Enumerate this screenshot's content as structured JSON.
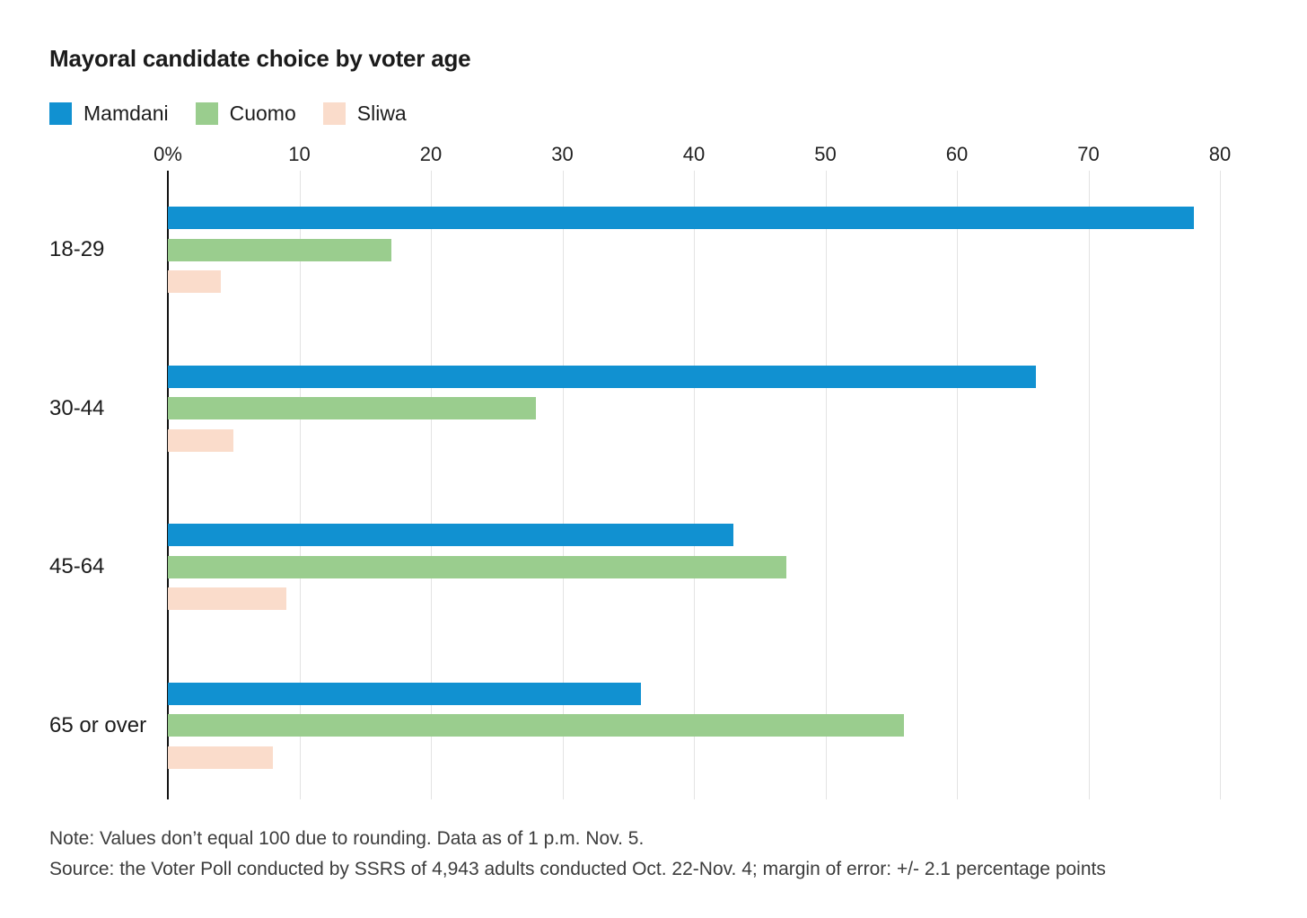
{
  "chart_data": {
    "type": "bar",
    "orientation": "horizontal",
    "title": "Mayoral candidate choice by voter age",
    "categories": [
      "18-29",
      "30-44",
      "45-64",
      "65 or over"
    ],
    "series": [
      {
        "name": "Mamdani",
        "color": "#1191d1",
        "values": [
          78,
          66,
          43,
          36
        ]
      },
      {
        "name": "Cuomo",
        "color": "#9acd8e",
        "values": [
          17,
          28,
          47,
          56
        ]
      },
      {
        "name": "Sliwa",
        "color": "#fadccb",
        "values": [
          4,
          5,
          9,
          8
        ]
      }
    ],
    "x_ticks": [
      "0%",
      "10",
      "20",
      "30",
      "40",
      "50",
      "60",
      "70",
      "80"
    ],
    "xlim": [
      0,
      80
    ],
    "unit": "percent",
    "grid": true,
    "legend_position": "top-left",
    "gridline_color": "#e3e3e3",
    "zero_axis_color": "#111111"
  },
  "notes": {
    "note": "Note: Values don’t equal 100 due to rounding. Data as of 1 p.m. Nov. 5.",
    "source": "Source: the Voter Poll conducted by SSRS of 4,943 adults conducted Oct. 22-Nov. 4; margin of error: +/- 2.1 percentage points"
  }
}
